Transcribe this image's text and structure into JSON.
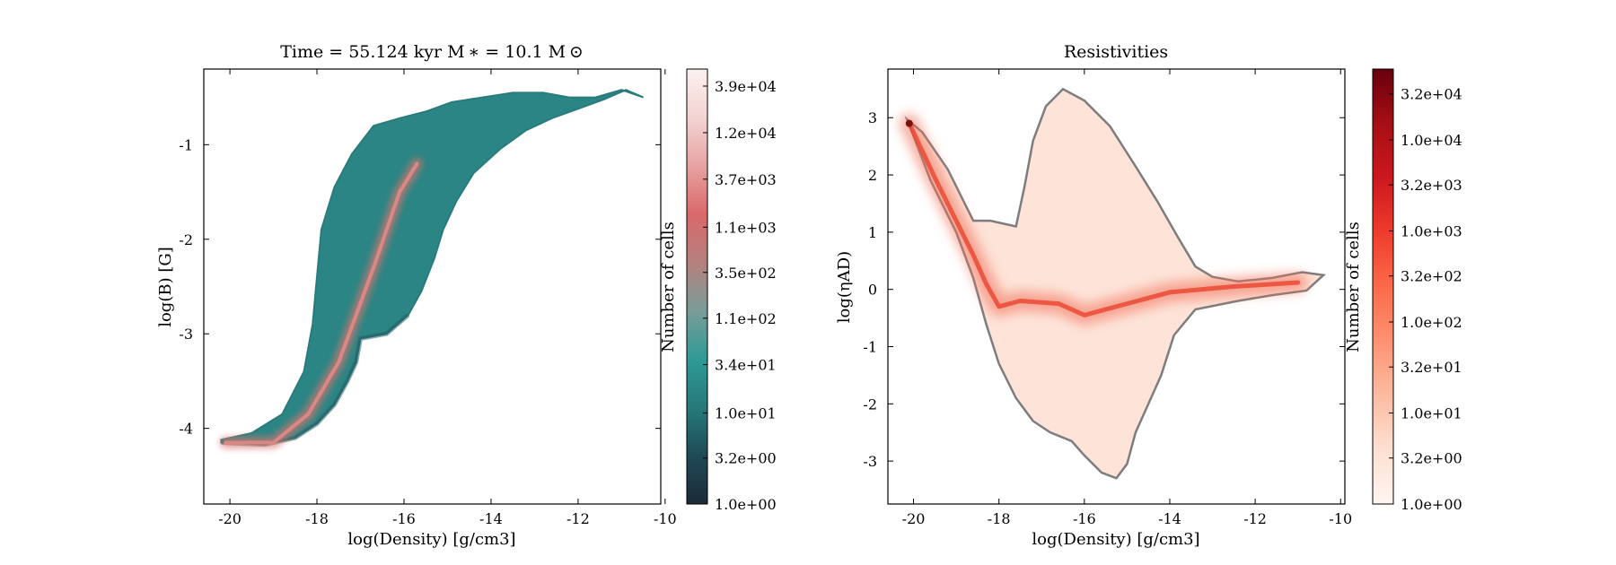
{
  "chart_data": [
    {
      "type": "heatmap",
      "title": "Time = 55.124 kyr    M$_*$ = 10.1 M$_\\odot$",
      "title_display": "Time = 55.124 kyr    M ∗ = 10.1 M ⊙",
      "xlabel": "log(Density) [g/cm3]",
      "ylabel": "log(B) [G]",
      "xlim": [
        -20.6,
        -10.1
      ],
      "ylim": [
        -4.8,
        -0.2
      ],
      "xticks": [
        -20,
        -18,
        -16,
        -14,
        -12,
        -10
      ],
      "yticks": [
        -4,
        -3,
        -2,
        -1
      ],
      "colormap": "teal-to-red (cmocean curl-like)",
      "colorbar": {
        "label": "Number of cells",
        "scale": "log",
        "range": [
          1,
          60000
        ],
        "ticks": [
          "1.0e+00",
          "3.2e+00",
          "1.0e+01",
          "3.4e+01",
          "1.1e+02",
          "3.5e+02",
          "1.1e+03",
          "3.7e+03",
          "1.2e+04",
          "3.9e+04"
        ],
        "colors": [
          "#1b2a38",
          "#1f4a55",
          "#267a7a",
          "#2f9a96",
          "#7a9c98",
          "#b5807d",
          "#d9696a",
          "#e7a3a2",
          "#f3d4d3",
          "#fbf1ef"
        ]
      },
      "region_outline": [
        [
          -20.2,
          -4.15
        ],
        [
          -19.2,
          -4.17
        ],
        [
          -18.5,
          -4.1
        ],
        [
          -18.0,
          -3.95
        ],
        [
          -17.6,
          -3.75
        ],
        [
          -17.3,
          -3.5
        ],
        [
          -17.1,
          -3.3
        ],
        [
          -17.0,
          -3.05
        ],
        [
          -16.4,
          -3.0
        ],
        [
          -15.9,
          -2.8
        ],
        [
          -15.6,
          -2.55
        ],
        [
          -15.3,
          -2.2
        ],
        [
          -15.1,
          -1.9
        ],
        [
          -14.8,
          -1.6
        ],
        [
          -14.4,
          -1.3
        ],
        [
          -13.8,
          -1.05
        ],
        [
          -13.2,
          -0.85
        ],
        [
          -12.6,
          -0.72
        ],
        [
          -12.0,
          -0.62
        ],
        [
          -11.4,
          -0.52
        ],
        [
          -10.9,
          -0.42
        ],
        [
          -10.5,
          -0.5
        ],
        [
          -11.0,
          -0.42
        ],
        [
          -11.6,
          -0.5
        ],
        [
          -12.2,
          -0.5
        ],
        [
          -12.8,
          -0.45
        ],
        [
          -13.5,
          -0.45
        ],
        [
          -14.2,
          -0.5
        ],
        [
          -14.9,
          -0.55
        ],
        [
          -15.5,
          -0.65
        ],
        [
          -16.1,
          -0.72
        ],
        [
          -16.7,
          -0.8
        ],
        [
          -17.2,
          -1.1
        ],
        [
          -17.6,
          -1.45
        ],
        [
          -17.9,
          -1.9
        ],
        [
          -18.0,
          -2.4
        ],
        [
          -18.1,
          -2.9
        ],
        [
          -18.3,
          -3.4
        ],
        [
          -18.8,
          -3.85
        ],
        [
          -19.5,
          -4.05
        ],
        [
          -20.2,
          -4.12
        ]
      ],
      "density_ridge": [
        [
          -20.1,
          -4.15
        ],
        [
          -19.0,
          -4.15
        ],
        [
          -18.2,
          -3.85
        ],
        [
          -17.5,
          -3.3
        ],
        [
          -17.1,
          -2.8
        ],
        [
          -16.7,
          -2.3
        ],
        [
          -16.4,
          -1.9
        ],
        [
          -16.1,
          -1.5
        ],
        [
          -15.7,
          -1.2
        ]
      ]
    },
    {
      "type": "heatmap",
      "title": "Resistivities",
      "xlabel": "log(Density) [g/cm3]",
      "ylabel": "log($\\eta_{\\rm AD}$)",
      "ylabel_display": "log(ηAD)",
      "xlim": [
        -20.6,
        -9.9
      ],
      "ylim": [
        -3.75,
        3.85
      ],
      "xticks": [
        -20,
        -18,
        -16,
        -14,
        -12,
        -10
      ],
      "yticks": [
        -3,
        -2,
        -1,
        0,
        1,
        2,
        3
      ],
      "colormap": "Reds",
      "contour_color": "#7d7d7d",
      "colorbar": {
        "label": "Number of cells",
        "scale": "log",
        "range": [
          1,
          60000
        ],
        "ticks": [
          "1.0e+00",
          "3.2e+00",
          "1.0e+01",
          "3.2e+01",
          "1.0e+02",
          "3.2e+02",
          "1.0e+03",
          "3.2e+03",
          "1.0e+04",
          "3.2e+04"
        ],
        "colors": [
          "#fff5f0",
          "#fee0d2",
          "#fcbba1",
          "#fc9272",
          "#fb6a4a",
          "#ef3b2c",
          "#cb181d",
          "#a50f15",
          "#67000d"
        ]
      },
      "region_outline": [
        [
          -20.15,
          2.97
        ],
        [
          -19.6,
          1.9
        ],
        [
          -19.0,
          1.0
        ],
        [
          -18.6,
          0.2
        ],
        [
          -18.3,
          -0.6
        ],
        [
          -18.0,
          -1.3
        ],
        [
          -17.6,
          -1.9
        ],
        [
          -17.2,
          -2.3
        ],
        [
          -16.8,
          -2.5
        ],
        [
          -16.3,
          -2.65
        ],
        [
          -16.0,
          -2.9
        ],
        [
          -15.6,
          -3.2
        ],
        [
          -15.25,
          -3.3
        ],
        [
          -15.0,
          -3.05
        ],
        [
          -14.8,
          -2.5
        ],
        [
          -14.5,
          -2.0
        ],
        [
          -14.2,
          -1.5
        ],
        [
          -13.9,
          -0.8
        ],
        [
          -13.4,
          -0.35
        ],
        [
          -12.4,
          -0.2
        ],
        [
          -11.6,
          -0.1
        ],
        [
          -10.8,
          -0.02
        ],
        [
          -10.4,
          0.25
        ],
        [
          -10.9,
          0.3
        ],
        [
          -11.6,
          0.2
        ],
        [
          -12.4,
          0.14
        ],
        [
          -13.0,
          0.22
        ],
        [
          -13.4,
          0.4
        ],
        [
          -13.8,
          0.9
        ],
        [
          -14.3,
          1.55
        ],
        [
          -14.8,
          2.15
        ],
        [
          -15.4,
          2.85
        ],
        [
          -16.0,
          3.3
        ],
        [
          -16.5,
          3.5
        ],
        [
          -16.9,
          3.2
        ],
        [
          -17.2,
          2.6
        ],
        [
          -17.4,
          1.8
        ],
        [
          -17.6,
          1.1
        ],
        [
          -18.2,
          1.2
        ],
        [
          -18.6,
          1.2
        ],
        [
          -19.2,
          2.1
        ],
        [
          -19.8,
          2.75
        ]
      ],
      "dense_track": [
        [
          -20.1,
          2.9
        ],
        [
          -19.5,
          1.95
        ],
        [
          -19.0,
          1.2
        ],
        [
          -18.6,
          0.6
        ],
        [
          -18.3,
          0.1
        ],
        [
          -18.0,
          -0.3
        ],
        [
          -17.5,
          -0.2
        ],
        [
          -16.6,
          -0.25
        ],
        [
          -16.0,
          -0.45
        ],
        [
          -15.5,
          -0.35
        ],
        [
          -14.0,
          -0.05
        ],
        [
          -12.5,
          0.05
        ],
        [
          -11.0,
          0.12
        ]
      ]
    }
  ]
}
